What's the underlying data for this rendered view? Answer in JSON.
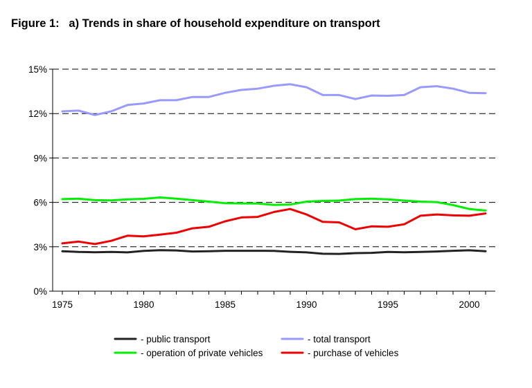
{
  "figure_title": "Figure 1:   a) Trends in share of household expenditure on transport",
  "chart_data": {
    "type": "line",
    "title": "a) Trends in share of household expenditure on transport",
    "xlabel": "",
    "ylabel": "",
    "xlim": [
      1975,
      2001
    ],
    "ylim": [
      0,
      15
    ],
    "x_ticks": [
      1975,
      1980,
      1985,
      1990,
      1995,
      2000
    ],
    "x_tick_labels": [
      "1975",
      "1980",
      "1985",
      "1990",
      "1995",
      "2000"
    ],
    "y_ticks": [
      0,
      3,
      6,
      9,
      12,
      15
    ],
    "y_tick_labels": [
      "0%",
      "3%",
      "6%",
      "9%",
      "12%",
      "15%"
    ],
    "grid": "horizontal dashed",
    "legend_placement": "bottom",
    "x": [
      1975,
      1976,
      1977,
      1978,
      1979,
      1980,
      1981,
      1982,
      1983,
      1984,
      1985,
      1986,
      1987,
      1988,
      1989,
      1990,
      1991,
      1992,
      1993,
      1994,
      1995,
      1996,
      1997,
      1998,
      1999,
      2000,
      2001
    ],
    "series": [
      {
        "name": "- public transport",
        "color": "#222222",
        "values": [
          2.7,
          2.65,
          2.63,
          2.65,
          2.62,
          2.72,
          2.77,
          2.75,
          2.68,
          2.7,
          2.73,
          2.73,
          2.73,
          2.72,
          2.66,
          2.62,
          2.53,
          2.52,
          2.57,
          2.59,
          2.65,
          2.63,
          2.65,
          2.68,
          2.73,
          2.76,
          2.7
        ]
      },
      {
        "name": "- total transport",
        "color": "#9999ff",
        "values": [
          12.15,
          12.2,
          11.9,
          12.15,
          12.58,
          12.68,
          12.9,
          12.9,
          13.12,
          13.12,
          13.4,
          13.6,
          13.68,
          13.88,
          13.98,
          13.78,
          13.25,
          13.25,
          12.98,
          13.22,
          13.2,
          13.25,
          13.78,
          13.85,
          13.68,
          13.4,
          13.38
        ]
      },
      {
        "name": "- operation of private vehicles",
        "color": "#00ee00",
        "values": [
          6.22,
          6.25,
          6.15,
          6.13,
          6.2,
          6.24,
          6.33,
          6.25,
          6.15,
          6.05,
          5.95,
          5.93,
          5.92,
          5.83,
          5.85,
          6.05,
          6.1,
          6.12,
          6.22,
          6.25,
          6.2,
          6.12,
          6.05,
          6.02,
          5.82,
          5.55,
          5.45
        ]
      },
      {
        "name": "- purchase of vehicles",
        "color": "#ee0000",
        "values": [
          3.23,
          3.35,
          3.18,
          3.4,
          3.75,
          3.7,
          3.82,
          3.95,
          4.25,
          4.35,
          4.72,
          4.98,
          5.02,
          5.35,
          5.55,
          5.18,
          4.68,
          4.65,
          4.18,
          4.38,
          4.35,
          4.52,
          5.1,
          5.18,
          5.12,
          5.1,
          5.25
        ]
      }
    ],
    "legend_order": [
      0,
      1,
      2,
      3
    ]
  }
}
